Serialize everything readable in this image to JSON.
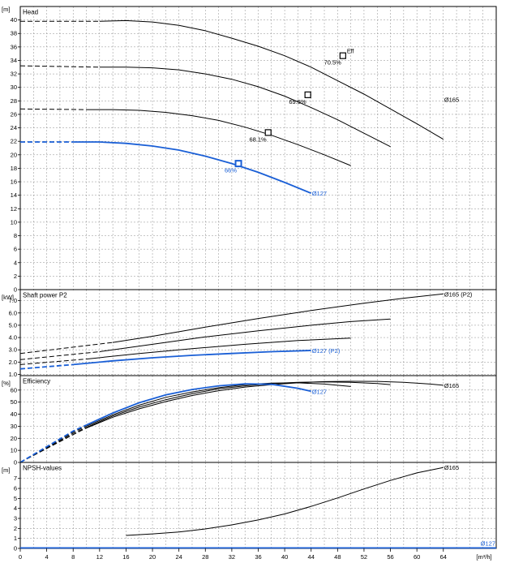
{
  "colors": {
    "blue": "#1a5fd6",
    "black": "#000000",
    "grid": "#8c8c8c"
  },
  "chart_data": [
    {
      "type": "line",
      "title": "Head",
      "ylabel": "[m]",
      "ylim": [
        0,
        42
      ],
      "yticks": [
        0,
        2,
        4,
        6,
        8,
        10,
        12,
        14,
        16,
        18,
        20,
        22,
        24,
        26,
        28,
        30,
        32,
        34,
        36,
        38,
        40
      ],
      "series": [
        {
          "name": "Ø165",
          "color": "black",
          "dashed": [
            [
              0,
              39.8
            ],
            [
              12,
              39.8
            ]
          ],
          "values": [
            [
              12,
              39.8
            ],
            [
              16,
              39.9
            ],
            [
              20,
              39.7
            ],
            [
              24,
              39.2
            ],
            [
              28,
              38.4
            ],
            [
              32,
              37.3
            ],
            [
              36,
              36.1
            ],
            [
              40,
              34.7
            ],
            [
              44,
              33.0
            ],
            [
              48,
              31.0
            ],
            [
              52,
              29.0
            ],
            [
              56,
              26.8
            ],
            [
              60,
              24.6
            ],
            [
              64,
              22.3
            ]
          ]
        },
        {
          "name": "",
          "color": "black",
          "dashed": [
            [
              0,
              33.2
            ],
            [
              12,
              33.0
            ]
          ],
          "values": [
            [
              12,
              33.0
            ],
            [
              16,
              33.0
            ],
            [
              20,
              32.9
            ],
            [
              24,
              32.6
            ],
            [
              28,
              32.0
            ],
            [
              32,
              31.2
            ],
            [
              36,
              30.1
            ],
            [
              40,
              28.7
            ],
            [
              44,
              27.0
            ],
            [
              48,
              25.2
            ],
            [
              52,
              23.2
            ],
            [
              56,
              21.2
            ]
          ]
        },
        {
          "name": "",
          "color": "black",
          "dashed": [
            [
              0,
              26.8
            ],
            [
              10,
              26.7
            ]
          ],
          "values": [
            [
              10,
              26.7
            ],
            [
              14,
              26.7
            ],
            [
              18,
              26.6
            ],
            [
              22,
              26.3
            ],
            [
              26,
              25.8
            ],
            [
              30,
              25.1
            ],
            [
              34,
              24.1
            ],
            [
              38,
              22.9
            ],
            [
              42,
              21.5
            ],
            [
              46,
              20.0
            ],
            [
              50,
              18.4
            ]
          ]
        },
        {
          "name": "Ø127",
          "color": "blue",
          "dashed": [
            [
              0,
              21.9
            ],
            [
              8,
              21.9
            ]
          ],
          "values": [
            [
              8,
              21.9
            ],
            [
              12,
              21.9
            ],
            [
              16,
              21.7
            ],
            [
              20,
              21.3
            ],
            [
              24,
              20.7
            ],
            [
              28,
              19.8
            ],
            [
              32,
              18.7
            ],
            [
              36,
              17.4
            ],
            [
              40,
              15.9
            ],
            [
              44,
              14.3
            ]
          ]
        }
      ],
      "markers": [
        {
          "x": 48.8,
          "y": 34.7,
          "color": "black",
          "label": "70.5%",
          "tag": "Eff"
        },
        {
          "x": 43.5,
          "y": 28.9,
          "color": "black",
          "label": "69.5%"
        },
        {
          "x": 37.5,
          "y": 23.3,
          "color": "black",
          "label": "68.1%"
        },
        {
          "x": 33.0,
          "y": 18.7,
          "color": "blue",
          "label": "66%"
        }
      ],
      "end_labels": [
        {
          "x": 64,
          "y": 28.2,
          "text": "Ø165",
          "color": "black"
        },
        {
          "x": 44,
          "y": 14.3,
          "text": "Ø127",
          "color": "blue"
        }
      ]
    },
    {
      "type": "line",
      "title": "Shaft power P2",
      "ylabel": "[kW]",
      "ylim": [
        0.9,
        7.9
      ],
      "yticks": [
        1.0,
        2.0,
        3.0,
        4.0,
        5.0,
        6.0,
        7.0
      ],
      "yticklabels": [
        "1.0",
        "2.0",
        "3.0",
        "4.0",
        "5.0",
        "6.0",
        "7.0"
      ],
      "series": [
        {
          "name": "Ø165 (P2)",
          "color": "black",
          "dashed": [
            [
              0,
              2.7
            ],
            [
              14,
              3.6
            ]
          ],
          "values": [
            [
              14,
              3.6
            ],
            [
              20,
              4.1
            ],
            [
              28,
              4.85
            ],
            [
              36,
              5.55
            ],
            [
              44,
              6.2
            ],
            [
              52,
              6.8
            ],
            [
              58,
              7.2
            ],
            [
              64,
              7.55
            ]
          ]
        },
        {
          "name": "",
          "color": "black",
          "dashed": [
            [
              0,
              2.2
            ],
            [
              12,
              2.85
            ]
          ],
          "values": [
            [
              12,
              2.85
            ],
            [
              20,
              3.45
            ],
            [
              28,
              4.05
            ],
            [
              36,
              4.55
            ],
            [
              44,
              5.0
            ],
            [
              50,
              5.3
            ],
            [
              56,
              5.5
            ]
          ]
        },
        {
          "name": "",
          "color": "black",
          "dashed": [
            [
              0,
              1.8
            ],
            [
              10,
              2.25
            ]
          ],
          "values": [
            [
              10,
              2.25
            ],
            [
              18,
              2.7
            ],
            [
              26,
              3.1
            ],
            [
              34,
              3.45
            ],
            [
              42,
              3.75
            ],
            [
              50,
              3.95
            ]
          ]
        },
        {
          "name": "Ø127 (P2)",
          "color": "blue",
          "dashed": [
            [
              0,
              1.45
            ],
            [
              8,
              1.8
            ]
          ],
          "values": [
            [
              8,
              1.8
            ],
            [
              14,
              2.1
            ],
            [
              20,
              2.35
            ],
            [
              26,
              2.55
            ],
            [
              32,
              2.7
            ],
            [
              38,
              2.85
            ],
            [
              44,
              2.95
            ]
          ]
        }
      ],
      "end_labels": [
        {
          "x": 64,
          "y": 7.55,
          "text": "Ø165 (P2)",
          "color": "black"
        },
        {
          "x": 44,
          "y": 2.95,
          "text": "Ø127 (P2)",
          "color": "blue"
        }
      ]
    },
    {
      "type": "line",
      "title": "Efficiency",
      "ylabel": "[%]",
      "ylim": [
        0,
        72
      ],
      "yticks": [
        0,
        10,
        20,
        30,
        40,
        50,
        60
      ],
      "series": [
        {
          "name": "Ø165",
          "color": "black",
          "dashed": [
            [
              0,
              0
            ],
            [
              4,
              11.5
            ],
            [
              8,
              23
            ],
            [
              10,
              28.5
            ]
          ],
          "values": [
            [
              10,
              28.5
            ],
            [
              14,
              37.5
            ],
            [
              18,
              44.5
            ],
            [
              22,
              50.5
            ],
            [
              26,
              55.5
            ],
            [
              30,
              59.5
            ],
            [
              34,
              62.5
            ],
            [
              38,
              64.5
            ],
            [
              42,
              66.0
            ],
            [
              46,
              67.0
            ],
            [
              50,
              67.3
            ],
            [
              54,
              67.2
            ],
            [
              58,
              66.5
            ],
            [
              62,
              65.0
            ],
            [
              64,
              64.0
            ]
          ]
        },
        {
          "name": "",
          "color": "black",
          "dashed": [
            [
              0,
              0
            ],
            [
              4,
              12
            ],
            [
              8,
              24
            ],
            [
              10,
              29
            ]
          ],
          "values": [
            [
              10,
              29
            ],
            [
              14,
              38.5
            ],
            [
              18,
              46
            ],
            [
              22,
              52
            ],
            [
              26,
              57
            ],
            [
              30,
              61
            ],
            [
              34,
              63.5
            ],
            [
              38,
              65.5
            ],
            [
              42,
              66.5
            ],
            [
              46,
              66.8
            ],
            [
              50,
              66.5
            ],
            [
              54,
              65.5
            ],
            [
              56,
              64.5
            ]
          ]
        },
        {
          "name": "",
          "color": "black",
          "dashed": [
            [
              0,
              0
            ],
            [
              4,
              12.5
            ],
            [
              8,
              25
            ],
            [
              10,
              30
            ]
          ],
          "values": [
            [
              10,
              30
            ],
            [
              14,
              39.5
            ],
            [
              18,
              47.5
            ],
            [
              22,
              54
            ],
            [
              26,
              58.5
            ],
            [
              30,
              62
            ],
            [
              34,
              64.5
            ],
            [
              38,
              65.8
            ],
            [
              42,
              66.0
            ],
            [
              46,
              65.0
            ],
            [
              50,
              63.0
            ]
          ]
        },
        {
          "name": "Ø127",
          "color": "blue",
          "dashed": [
            [
              0,
              0
            ],
            [
              4,
              13
            ],
            [
              8,
              26
            ],
            [
              10,
              31
            ]
          ],
          "values": [
            [
              10,
              31
            ],
            [
              14,
              41
            ],
            [
              18,
              49.5
            ],
            [
              22,
              56
            ],
            [
              26,
              60.5
            ],
            [
              30,
              63.5
            ],
            [
              34,
              65.2
            ],
            [
              38,
              64.8
            ],
            [
              42,
              61.5
            ],
            [
              44,
              59.0
            ]
          ]
        }
      ],
      "end_labels": [
        {
          "x": 64,
          "y": 64.0,
          "text": "Ø165",
          "color": "black"
        },
        {
          "x": 44,
          "y": 59.0,
          "text": "Ø127",
          "color": "blue"
        }
      ]
    },
    {
      "type": "line",
      "title": "NPSH-values",
      "ylabel": "[m]",
      "ylim": [
        0,
        8.6
      ],
      "yticks": [
        0,
        1,
        2,
        3,
        4,
        5,
        6,
        7
      ],
      "xlabel": "[m³/h]",
      "xlim": [
        0,
        72
      ],
      "xticks": [
        0,
        4,
        8,
        12,
        16,
        20,
        24,
        28,
        32,
        36,
        40,
        44,
        48,
        52,
        56,
        60,
        64
      ],
      "series": [
        {
          "name": "Ø165",
          "color": "black",
          "values": [
            [
              16,
              1.3
            ],
            [
              20,
              1.45
            ],
            [
              24,
              1.65
            ],
            [
              28,
              1.95
            ],
            [
              32,
              2.35
            ],
            [
              36,
              2.85
            ],
            [
              40,
              3.45
            ],
            [
              44,
              4.2
            ],
            [
              48,
              5.05
            ],
            [
              52,
              5.95
            ],
            [
              56,
              6.8
            ],
            [
              60,
              7.55
            ],
            [
              64,
              8.1
            ]
          ]
        },
        {
          "name": "Ø127",
          "color": "blue",
          "values": [
            [
              0,
              0.05
            ],
            [
              72,
              0.05
            ]
          ]
        }
      ],
      "end_labels": [
        {
          "x": 64,
          "y": 8.1,
          "text": "Ø165",
          "color": "black"
        },
        {
          "x": 72,
          "y": 0.05,
          "text": "Ø127",
          "color": "blue"
        }
      ]
    }
  ]
}
